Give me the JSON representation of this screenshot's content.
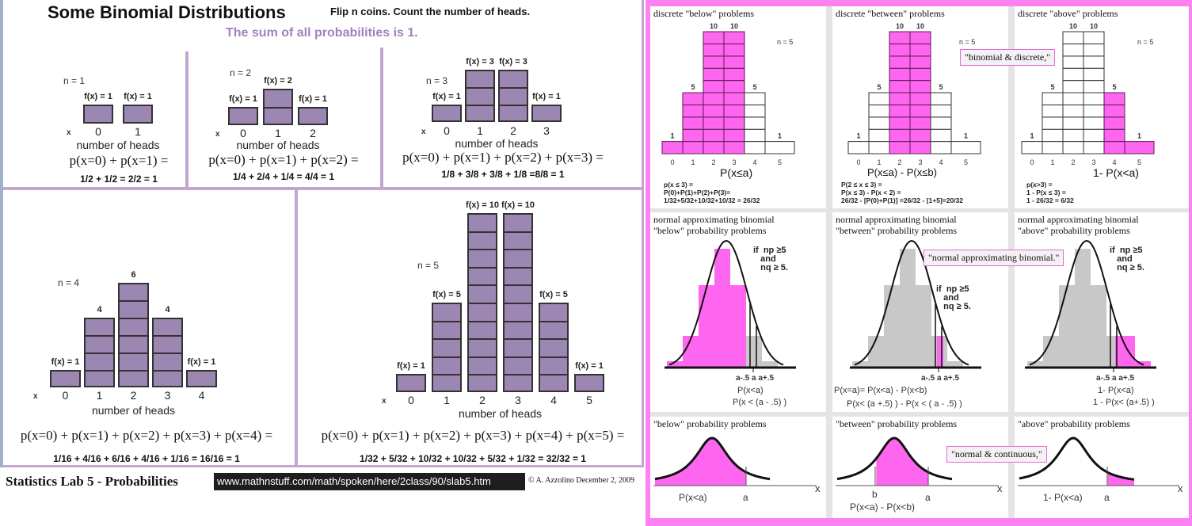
{
  "header": {
    "title": "Some Binomial Distributions",
    "subtitle": "Flip  n  coins.  Count the number of heads.",
    "sum_note": "The sum of all probabilities is 1."
  },
  "footer": {
    "lab_title": "Statistics Lab 5 - Probabilities",
    "url": "www.mathnstuff.com/math/spoken/here/2class/90/slab5.htm",
    "copyright": "© A. Azzolino December 2, 2009"
  },
  "colors": {
    "bar_fill": "#9c87b2",
    "highlight": "#ff66f0",
    "border_pink": "#ff80f0",
    "divider": "#c3a6cf",
    "sum_text": "#9f82bf",
    "gray_fill": "#c8c8c8"
  },
  "chart_data": [
    {
      "type": "bar",
      "title": "n = 1",
      "xlabel": "number of heads",
      "x_axis_marker": "x",
      "categories": [
        "0",
        "1"
      ],
      "values": [
        1,
        1
      ],
      "value_labels": [
        "f(x) = 1",
        "f(x) = 1"
      ],
      "equation": "p(x=0) + p(x=1) =",
      "sum": "1/2 + 1/2 = 2/2 = 1"
    },
    {
      "type": "bar",
      "title": "n = 2",
      "xlabel": "number of heads",
      "x_axis_marker": "x",
      "categories": [
        "0",
        "1",
        "2"
      ],
      "values": [
        1,
        2,
        1
      ],
      "value_labels": [
        "f(x) = 1",
        "f(x) = 2",
        "f(x) = 1"
      ],
      "equation": "p(x=0) + p(x=1) + p(x=2) =",
      "sum": "1/4 + 2/4 + 1/4 = 4/4 = 1"
    },
    {
      "type": "bar",
      "title": "n = 3",
      "xlabel": "number of heads",
      "x_axis_marker": "x",
      "categories": [
        "0",
        "1",
        "2",
        "3"
      ],
      "values": [
        1,
        3,
        3,
        1
      ],
      "value_labels": [
        "f(x) = 1",
        "f(x) = 3",
        "f(x) = 3",
        "f(x) = 1"
      ],
      "equation": "p(x=0) + p(x=1) + p(x=2) + p(x=3) =",
      "sum": "1/8 + 3/8 + 3/8 + 1/8 =8/8 = 1"
    },
    {
      "type": "bar",
      "title": "n = 4",
      "xlabel": "number of heads",
      "x_axis_marker": "x",
      "categories": [
        "0",
        "1",
        "2",
        "3",
        "4"
      ],
      "values": [
        1,
        4,
        6,
        4,
        1
      ],
      "value_labels": [
        "f(x) = 1",
        "4",
        "6",
        "4",
        "f(x) = 1"
      ],
      "equation": "p(x=0) + p(x=1) + p(x=2) + p(x=3) + p(x=4) =",
      "sum": "1/16 + 4/16 + 6/16 + 4/16 + 1/16 = 16/16 = 1"
    },
    {
      "type": "bar",
      "title": "n = 5",
      "xlabel": "number of heads",
      "x_axis_marker": "x",
      "categories": [
        "0",
        "1",
        "2",
        "3",
        "4",
        "5"
      ],
      "values": [
        1,
        5,
        10,
        10,
        5,
        1
      ],
      "value_labels": [
        "f(x) = 1",
        "f(x) = 5",
        "f(x) = 10",
        "f(x) = 10",
        "f(x) = 5",
        "f(x) = 1"
      ],
      "equation": "p(x=0) + p(x=1) + p(x=2) + p(x=3) + p(x=4) + p(x=5) =",
      "sum": "1/32 + 5/32 + 10/32 + 10/32 + 5/32 + 1/32 = 32/32 = 1"
    },
    {
      "type": "bar",
      "title": "discrete \"below\" problems",
      "n_label": "n = 5",
      "categories": [
        "0",
        "1",
        "2",
        "3",
        "4",
        "5"
      ],
      "values": [
        1,
        5,
        10,
        10,
        5,
        1
      ],
      "value_labels": [
        "1",
        "5",
        "10",
        "10",
        "5",
        "1"
      ],
      "highlighted": [
        true,
        true,
        true,
        true,
        false,
        false
      ],
      "prob_label": "P(x≤a)",
      "formula": [
        "p(x ≤ 3) =",
        "P(0)+P(1)+P(2)+P(3)=",
        "1/32+5/32+10/32+10/32 = 26/32"
      ]
    },
    {
      "type": "bar",
      "title": "discrete \"between\" problems",
      "n_label": "n = 5",
      "categories": [
        "0",
        "1",
        "2",
        "3",
        "4",
        "5"
      ],
      "values": [
        1,
        5,
        10,
        10,
        5,
        1
      ],
      "value_labels": [
        "1",
        "5",
        "10",
        "10",
        "5",
        "1"
      ],
      "highlighted": [
        false,
        false,
        true,
        true,
        false,
        false
      ],
      "prob_label": "P(x≤a) - P(x≤b)",
      "formula": [
        "P(2 ≤ x ≤ 3) =",
        "P(x ≤ 3)  - P(x < 2) =",
        "26/32 - [P(0)+P(1)] =26/32 - [1+5]=20/32"
      ]
    },
    {
      "type": "bar",
      "title": "discrete \"above\" problems",
      "n_label": "n = 5",
      "categories": [
        "0",
        "1",
        "2",
        "3",
        "4",
        "5"
      ],
      "values": [
        1,
        5,
        10,
        10,
        5,
        1
      ],
      "value_labels": [
        "1",
        "5",
        "10",
        "10",
        "5",
        "1"
      ],
      "highlighted": [
        false,
        false,
        false,
        false,
        true,
        true
      ],
      "prob_label": "1- P(x<a)",
      "formula": [
        "p(x>3) =",
        "1 - P(x ≤ 3) =",
        "1 -   26/32  = 6/32"
      ]
    },
    {
      "type": "area",
      "title": "normal approximating binomial \"below\" probability problems",
      "title_lines": [
        "normal approximating binomial",
        "\"below\" probability problems"
      ],
      "condition": "if  np ≥5\n   and\n   nq ≥ 5.",
      "axis_marks": "a-.5 a a+.5",
      "labels": [
        "P(x<a)",
        "P(x < (a - .5) )"
      ],
      "shade": "below"
    },
    {
      "type": "area",
      "title": "normal approximating binomial \"between\" probability problems",
      "title_lines": [
        "normal approximating binomial",
        "\"between\" probability problems"
      ],
      "condition": "if  np ≥5\n   and\n   nq ≥ 5.",
      "axis_marks": "a-.5 a a+.5",
      "labels": [
        "P(x=a)=   P(x<a) - P(x<b)",
        "P(x< (a +.5) ) - P(x < ( a - .5) )"
      ],
      "shade": "between"
    },
    {
      "type": "area",
      "title": "normal approximating binomial \"above\" probability problems",
      "title_lines": [
        "normal approximating binomial",
        "\"above\" probability problems"
      ],
      "condition": "if  np ≥5\n   and\n   nq ≥ 5.",
      "axis_marks": "a-.5 a a+.5",
      "labels": [
        "1- P(x<a)",
        "1 - P(x< (a+.5)  )"
      ],
      "shade": "above"
    },
    {
      "type": "area",
      "title": "\"below\" probability problems",
      "x_axis_label": "x",
      "marks": [
        "a"
      ],
      "labels": [
        "P(x<a)"
      ],
      "shade": "below"
    },
    {
      "type": "area",
      "title": "\"between\" probability problems",
      "x_axis_label": "x",
      "marks": [
        "b",
        "a"
      ],
      "labels": [
        "P(x<a) - P(x<b)"
      ],
      "shade": "between"
    },
    {
      "type": "area",
      "title": "\"above\" probability problems",
      "x_axis_label": "x",
      "marks": [
        "a"
      ],
      "labels": [
        "1- P(x<a)"
      ],
      "shade": "above"
    }
  ],
  "notes": {
    "discrete": "\"binomial & discrete,\"",
    "approx": "\"normal approximating binomial.\"",
    "continuous": "\"normal & continuous,\""
  }
}
